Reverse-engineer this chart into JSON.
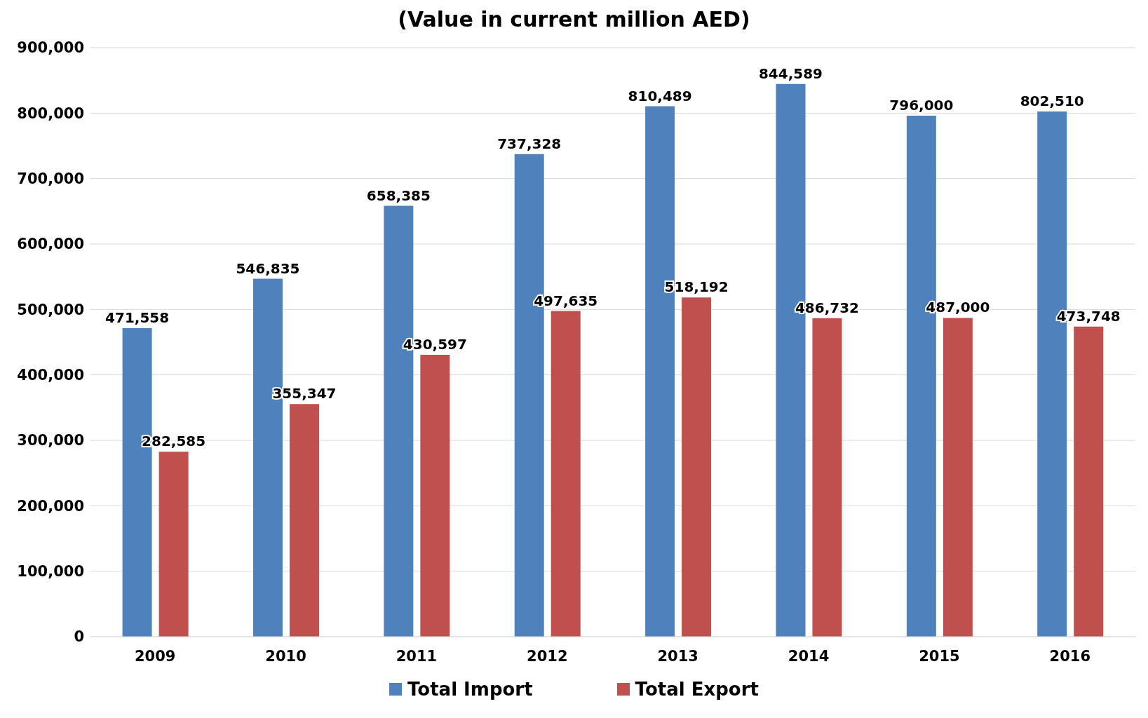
{
  "chart_data": {
    "type": "bar",
    "title": "(Value in current million AED)",
    "categories": [
      "2009",
      "2010",
      "2011",
      "2012",
      "2013",
      "2014",
      "2015",
      "2016"
    ],
    "series": [
      {
        "name": "Total Import",
        "color": "#4f81bd",
        "values": [
          471558,
          546835,
          658385,
          737328,
          810489,
          844589,
          796000,
          802510
        ],
        "value_labels": [
          "471,558",
          "546,835",
          "658,385",
          "737,328",
          "810,489",
          "844,589",
          "796,000",
          "802,510"
        ]
      },
      {
        "name": "Total Export",
        "color": "#c0504d",
        "values": [
          282585,
          355347,
          430597,
          497635,
          518192,
          486732,
          487000,
          473748
        ],
        "value_labels": [
          "282,585",
          "355,347",
          "430,597",
          "497,635",
          "518,192",
          "486,732",
          "487,000",
          "473,748"
        ]
      }
    ],
    "ylim": [
      0,
      900000
    ],
    "yticks": [
      0,
      {
        "value": 100000,
        "label": "100,000"
      },
      {
        "value": 200000,
        "label": "200,000"
      },
      {
        "value": 300000,
        "label": "300,000"
      },
      {
        "value": 400000,
        "label": "400,000"
      },
      {
        "value": 500000,
        "label": "500,000"
      },
      {
        "value": 600000,
        "label": "600,000"
      },
      {
        "value": 700000,
        "label": "700,000"
      },
      {
        "value": 800000,
        "label": "800,000"
      },
      {
        "value": 900000,
        "label": "900,000"
      }
    ],
    "grid": "y",
    "legend": "bottom"
  }
}
